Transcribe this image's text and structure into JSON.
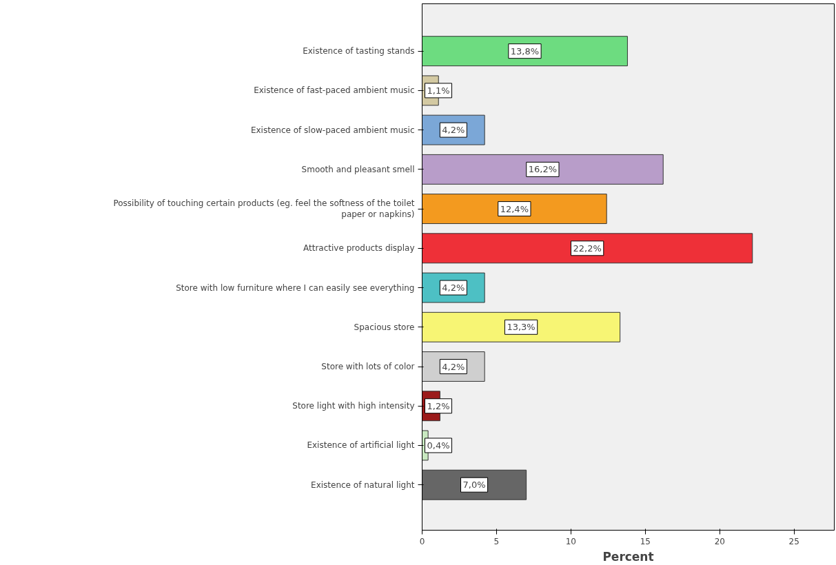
{
  "chart_data": {
    "type": "bar",
    "orientation": "horizontal",
    "xlabel": "Percent",
    "categories": [
      "Existence of tasting stands",
      "Existence of fast-paced ambient music",
      "Existence of slow-paced ambient music",
      "Smooth and pleasant smell",
      "Possibility of touching certain products (eg. feel the softness of the toilet\npaper or napkins)",
      "Attractive products display",
      "Store with low furniture where I can easily see everything",
      "Spacious store",
      "Store with lots of color",
      "Store light with high intensity",
      "Existence of artificial light",
      "Existence of natural light"
    ],
    "values": [
      13.8,
      1.1,
      4.2,
      16.2,
      12.4,
      22.2,
      4.2,
      13.3,
      4.2,
      1.2,
      0.4,
      7.0
    ],
    "value_labels": [
      "13,8%",
      "1,1%",
      "4,2%",
      "16,2%",
      "12,4%",
      "22,2%",
      "4,2%",
      "13,3%",
      "4,2%",
      "1,2%",
      "0,4%",
      "7,0%"
    ],
    "colors": [
      "#6ddc80",
      "#d3c9a2",
      "#7ba7d7",
      "#b89dc9",
      "#f39a1f",
      "#ee3038",
      "#4dc0c4",
      "#f7f574",
      "#cfcfcf",
      "#9b1b1b",
      "#c8e8c0",
      "#666666"
    ],
    "xlim": [
      0,
      27.7
    ],
    "xticks": [
      0,
      5,
      10,
      15,
      20,
      25
    ],
    "grid": false,
    "legend": false
  }
}
